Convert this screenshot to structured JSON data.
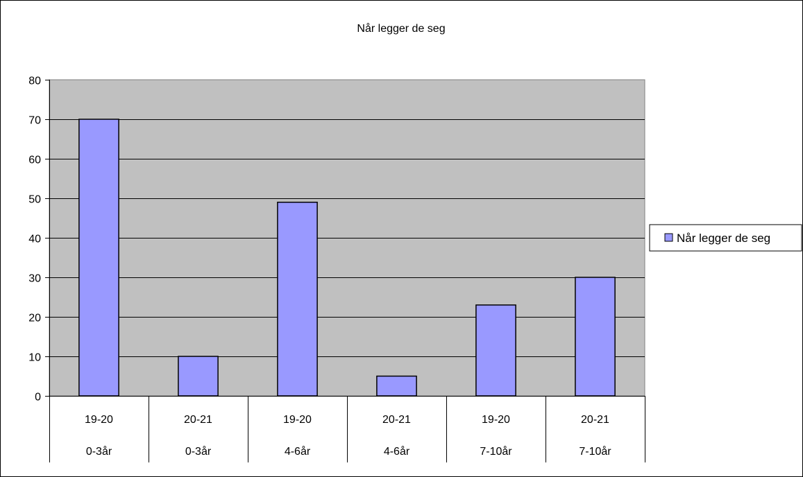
{
  "chart_data": {
    "type": "bar",
    "title": "Når legger de seg",
    "categories": [
      [
        "19-20",
        "0-3år"
      ],
      [
        "20-21",
        "0-3år"
      ],
      [
        "19-20",
        "4-6år"
      ],
      [
        "20-21",
        "4-6år"
      ],
      [
        "19-20",
        "7-10år"
      ],
      [
        "20-21",
        "7-10år"
      ]
    ],
    "series": [
      {
        "name": "Når legger de seg",
        "values": [
          70,
          10,
          49,
          5,
          23,
          30
        ],
        "color": "#9999ff"
      }
    ],
    "xlabel": "",
    "ylabel": "",
    "ylim": [
      0,
      80
    ],
    "yticks": [
      0,
      10,
      20,
      30,
      40,
      50,
      60,
      70,
      80
    ],
    "plot_background": "#c0c0c0",
    "grid": true,
    "legend": "right"
  }
}
